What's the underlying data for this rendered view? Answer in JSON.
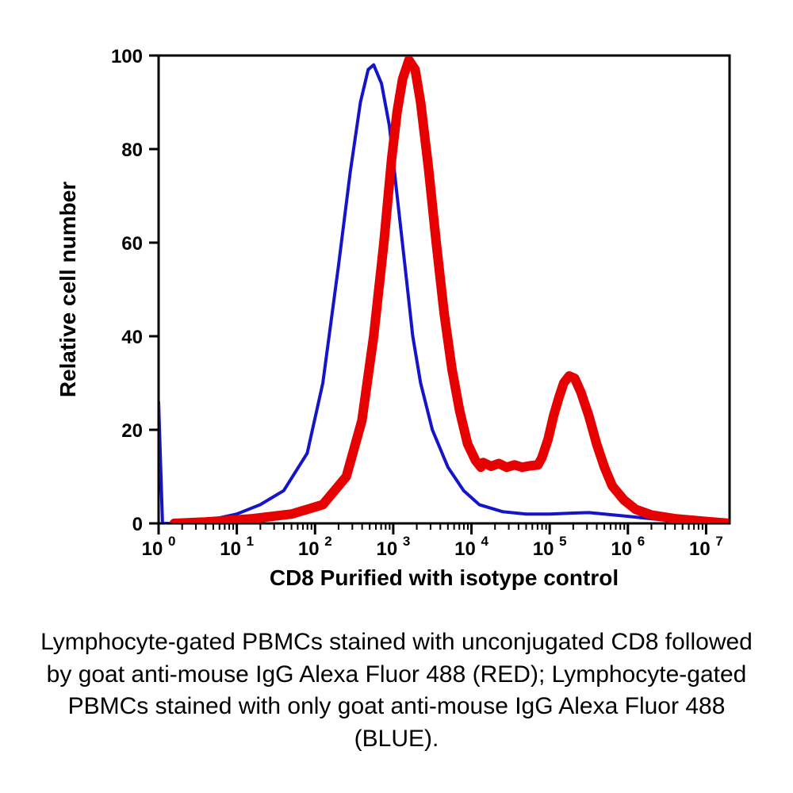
{
  "chart": {
    "type": "histogram",
    "xlabel": "CD8 Purified with isotype control",
    "ylabel": "Relative cell number",
    "label_fontsize": 28,
    "label_fontweight": "bold",
    "tick_fontsize": 24,
    "tick_fontweight": "bold",
    "background_color": "#ffffff",
    "axis_color": "#000000",
    "axis_width": 3,
    "ylim": [
      0,
      100
    ],
    "ytick_step": 20,
    "yticks": [
      0,
      20,
      40,
      60,
      80,
      100
    ],
    "xscale": "log",
    "xlim_exp": [
      0,
      7.3
    ],
    "xticks_exp": [
      0,
      1,
      2,
      3,
      4,
      5,
      6,
      7
    ],
    "xtick_labels": [
      "10",
      "10",
      "10",
      "10",
      "10",
      "10",
      "10",
      "10"
    ],
    "xtick_superscripts": [
      "0",
      "1",
      "2",
      "3",
      "4",
      "5",
      "6",
      "7"
    ],
    "series": {
      "blue": {
        "color": "#1414c8",
        "stroke_width": 4,
        "points": [
          [
            0.0,
            26
          ],
          [
            0.05,
            0
          ],
          [
            0.3,
            0
          ],
          [
            0.6,
            0.5
          ],
          [
            1.0,
            2
          ],
          [
            1.3,
            4
          ],
          [
            1.6,
            7
          ],
          [
            1.9,
            15
          ],
          [
            2.1,
            30
          ],
          [
            2.3,
            55
          ],
          [
            2.45,
            75
          ],
          [
            2.58,
            90
          ],
          [
            2.68,
            97
          ],
          [
            2.75,
            98
          ],
          [
            2.85,
            94
          ],
          [
            2.95,
            85
          ],
          [
            3.05,
            70
          ],
          [
            3.15,
            55
          ],
          [
            3.25,
            40
          ],
          [
            3.35,
            30
          ],
          [
            3.5,
            20
          ],
          [
            3.7,
            12
          ],
          [
            3.9,
            7
          ],
          [
            4.1,
            4
          ],
          [
            4.4,
            2.5
          ],
          [
            4.7,
            2
          ],
          [
            5.0,
            2
          ],
          [
            5.3,
            2.2
          ],
          [
            5.5,
            2.3
          ],
          [
            5.7,
            2
          ],
          [
            6.0,
            1.5
          ],
          [
            6.3,
            1
          ],
          [
            6.6,
            0.5
          ],
          [
            7.0,
            0.2
          ],
          [
            7.3,
            0
          ]
        ]
      },
      "red": {
        "color": "#e60000",
        "stroke_width": 12,
        "points": [
          [
            0.2,
            0
          ],
          [
            0.6,
            0.3
          ],
          [
            1.2,
            1
          ],
          [
            1.7,
            2
          ],
          [
            2.1,
            4
          ],
          [
            2.4,
            10
          ],
          [
            2.6,
            22
          ],
          [
            2.75,
            40
          ],
          [
            2.88,
            60
          ],
          [
            2.98,
            78
          ],
          [
            3.05,
            88
          ],
          [
            3.12,
            95
          ],
          [
            3.2,
            99
          ],
          [
            3.28,
            97
          ],
          [
            3.35,
            90
          ],
          [
            3.45,
            76
          ],
          [
            3.55,
            60
          ],
          [
            3.65,
            45
          ],
          [
            3.75,
            33
          ],
          [
            3.85,
            24
          ],
          [
            3.95,
            17
          ],
          [
            4.05,
            13.5
          ],
          [
            4.12,
            12
          ],
          [
            4.15,
            13
          ],
          [
            4.25,
            12.2
          ],
          [
            4.35,
            12.8
          ],
          [
            4.45,
            12
          ],
          [
            4.55,
            12.5
          ],
          [
            4.65,
            12
          ],
          [
            4.75,
            12.3
          ],
          [
            4.85,
            12.5
          ],
          [
            4.9,
            14
          ],
          [
            4.98,
            18
          ],
          [
            5.05,
            23
          ],
          [
            5.12,
            27
          ],
          [
            5.18,
            30
          ],
          [
            5.25,
            31.5
          ],
          [
            5.32,
            31
          ],
          [
            5.4,
            28
          ],
          [
            5.5,
            23
          ],
          [
            5.6,
            17
          ],
          [
            5.7,
            12
          ],
          [
            5.8,
            8
          ],
          [
            5.95,
            5
          ],
          [
            6.1,
            3
          ],
          [
            6.3,
            1.8
          ],
          [
            6.6,
            1
          ],
          [
            7.0,
            0.4
          ],
          [
            7.3,
            0
          ]
        ]
      }
    }
  },
  "caption": {
    "text": "Lymphocyte-gated PBMCs stained with unconjugated CD8 followed by goat anti-mouse IgG Alexa Fluor 488 (RED); Lymphocyte-gated PBMCs stained with only goat anti-mouse IgG Alexa Fluor 488 (BLUE).",
    "fontsize": 30,
    "color": "#000000"
  }
}
